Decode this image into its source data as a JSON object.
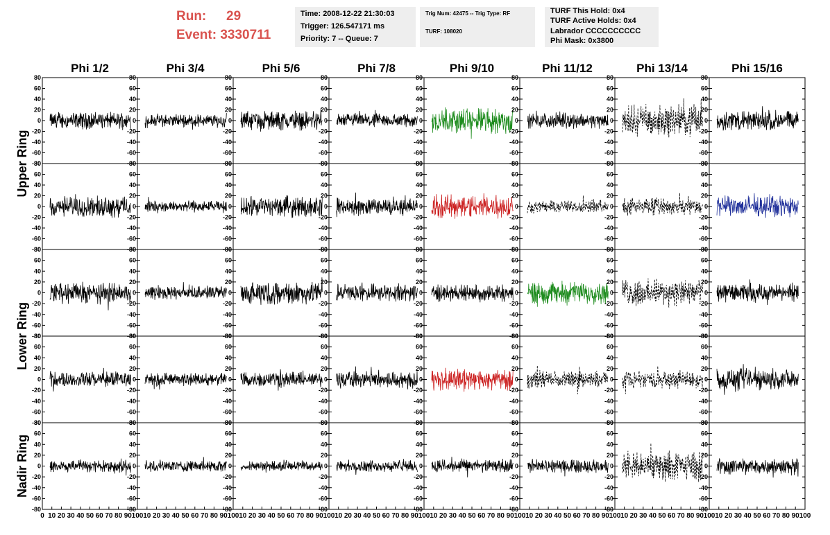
{
  "header": {
    "run_label": "Run:",
    "run_value": "29",
    "event_label": "Event:",
    "event_value": "3330711"
  },
  "info": {
    "time": "Time: 2008-12-22 21:30:03",
    "trigger": "Trigger: 126.547171 ms",
    "priority": "Priority: 7 -- Queue: 7",
    "trig_num": "Trig Num: 42475 -- Trig Type: RF",
    "turf": "TURF: 108020",
    "turf_hold": "TURF This Hold: 0x4",
    "turf_active": "TURF Active Holds: 0x4",
    "labrador": "Labrador CCCCCCCCCC",
    "phi_mask": "Phi Mask: 0x3800"
  },
  "chart_data": {
    "type": "line",
    "columns": [
      "Phi 1/2",
      "Phi 3/4",
      "Phi 5/6",
      "Phi 7/8",
      "Phi 9/10",
      "Phi 11/12",
      "Phi 13/14",
      "Phi 15/16"
    ],
    "row_labels": [
      "Upper Ring",
      "Lower Ring",
      "Nadir Ring"
    ],
    "ylim": [
      -80,
      80
    ],
    "xlim": [
      0,
      100
    ],
    "y_ticks": [
      80,
      60,
      40,
      20,
      0,
      -20,
      -40,
      -60,
      -80
    ],
    "x_ticks": [
      0,
      10,
      20,
      30,
      40,
      50,
      60,
      70,
      80,
      90,
      100
    ],
    "colors": {
      "normal": "#000000",
      "green": "#1e8c1e",
      "red": "#cc2222",
      "blue": "#1f2f9a"
    },
    "panels": [
      [
        "normal",
        "normal",
        "normal",
        "normal",
        "green",
        "normal",
        "dashed",
        "normal"
      ],
      [
        "normal",
        "normal",
        "normal",
        "normal",
        "red",
        "dashed",
        "dashed",
        "blue"
      ],
      [
        "normal",
        "normal",
        "normal",
        "normal",
        "normal",
        "green",
        "dashed",
        "normal"
      ],
      [
        "normal",
        "normal",
        "normal",
        "normal",
        "red",
        "dashed",
        "dashed",
        "normal"
      ],
      [
        "normal",
        "normal",
        "normal",
        "normal",
        "normal",
        "normal",
        "dashed",
        "normal"
      ]
    ],
    "amplitude": [
      [
        18,
        14,
        20,
        15,
        28,
        16,
        32,
        22
      ],
      [
        22,
        12,
        22,
        18,
        26,
        14,
        18,
        22
      ],
      [
        22,
        14,
        24,
        18,
        18,
        24,
        28,
        18
      ],
      [
        16,
        14,
        16,
        18,
        22,
        18,
        18,
        22
      ],
      [
        14,
        12,
        10,
        12,
        14,
        14,
        30,
        18
      ]
    ],
    "samples": 260
  }
}
